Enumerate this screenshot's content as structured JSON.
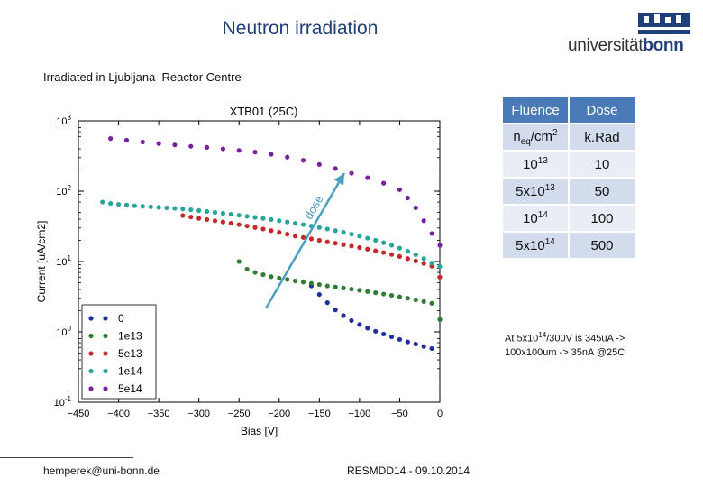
{
  "slide": {
    "title": "Neutron irradiation",
    "subtitle": "Irradiated in Ljubljana  Reactor Centre",
    "logo": {
      "text_a": "universität",
      "text_b": "bonn",
      "brand_color": "#1f3f7a"
    },
    "footer_email": "hemperek@uni-bonn.de",
    "footer_event": "RESMDD14 - 09.10.2014",
    "note": {
      "line1_prefix": "At 5x10",
      "line1_exp": "14",
      "line1_suffix": "/300V is 345uA ->",
      "line2": "100x100um -> 35nA @25C"
    }
  },
  "fluence_table": {
    "header": [
      "Fluence",
      "Dose"
    ],
    "units_fluence": {
      "base": "n",
      "sub": "eq",
      "tail": "/cm",
      "sup": "2"
    },
    "units_dose": "k.Rad",
    "rows": [
      {
        "mant": "",
        "exp": "13",
        "base": "10",
        "dose": "10"
      },
      {
        "mant": "5x",
        "exp": "13",
        "base": "10",
        "dose": "50"
      },
      {
        "mant": "",
        "exp": "14",
        "base": "10",
        "dose": "100"
      },
      {
        "mant": "5x",
        "exp": "14",
        "base": "10",
        "dose": "500"
      }
    ]
  },
  "chart_data": {
    "type": "scatter",
    "title": "XTB01 (25C)",
    "xlabel": "Bias [V]",
    "ylabel": "Current [uA/cm2]",
    "xlim": [
      -450,
      0
    ],
    "ylim_log10": [
      -1,
      3
    ],
    "yscale": "log",
    "x_ticks": [
      "−450",
      "−400",
      "−350",
      "−300",
      "−250",
      "−200",
      "−150",
      "−100",
      "−50",
      "0"
    ],
    "y_ticks": [
      {
        "base": "10",
        "exp": "-1"
      },
      {
        "base": "10",
        "exp": "0"
      },
      {
        "base": "10",
        "exp": "1"
      },
      {
        "base": "10",
        "exp": "2"
      },
      {
        "base": "10",
        "exp": "3"
      }
    ],
    "legend_position": "bottom-left",
    "arrow_label": "dose",
    "series": [
      {
        "name": "0",
        "color": "#1f2fa0",
        "x": [
          -160,
          -150,
          -140,
          -130,
          -120,
          -110,
          -100,
          -90,
          -80,
          -70,
          -60,
          -50,
          -40,
          -30,
          -20,
          -10,
          0
        ],
        "y": [
          4.5,
          3.4,
          2.6,
          2.05,
          1.7,
          1.45,
          1.27,
          1.13,
          1.02,
          0.93,
          0.85,
          0.78,
          0.72,
          0.67,
          0.62,
          0.58,
          1.5
        ]
      },
      {
        "name": "1e13",
        "color": "#2e7d32",
        "x": [
          -250,
          -240,
          -230,
          -220,
          -210,
          -200,
          -190,
          -180,
          -170,
          -160,
          -150,
          -140,
          -130,
          -120,
          -110,
          -100,
          -90,
          -80,
          -70,
          -60,
          -50,
          -40,
          -30,
          -20,
          -10,
          0
        ],
        "y": [
          10,
          7.8,
          7.0,
          6.5,
          6.1,
          5.8,
          5.55,
          5.3,
          5.1,
          4.9,
          4.7,
          4.5,
          4.35,
          4.2,
          4.05,
          3.9,
          3.75,
          3.6,
          3.45,
          3.3,
          3.15,
          3.0,
          2.85,
          2.7,
          2.55,
          1.5
        ]
      },
      {
        "name": "5e13",
        "color": "#c62828",
        "x": [
          -320,
          -310,
          -300,
          -290,
          -280,
          -270,
          -260,
          -250,
          -240,
          -230,
          -220,
          -210,
          -200,
          -190,
          -180,
          -170,
          -160,
          -150,
          -140,
          -130,
          -120,
          -110,
          -100,
          -90,
          -80,
          -70,
          -60,
          -50,
          -40,
          -30,
          -20,
          -10,
          0
        ],
        "y": [
          45,
          43,
          41,
          39.5,
          38,
          36.5,
          35,
          33.5,
          32,
          30.5,
          29,
          27.5,
          26,
          24.5,
          23,
          22,
          21,
          20,
          19,
          18.2,
          17.4,
          16.6,
          15.8,
          15,
          14.2,
          13.4,
          12.6,
          11.8,
          11,
          10.2,
          9.4,
          8.6,
          6.0
        ]
      },
      {
        "name": "1e14",
        "color": "#26a69a",
        "x": [
          -420,
          -410,
          -400,
          -390,
          -380,
          -370,
          -360,
          -350,
          -340,
          -330,
          -320,
          -310,
          -300,
          -290,
          -280,
          -270,
          -260,
          -250,
          -240,
          -230,
          -220,
          -210,
          -200,
          -190,
          -180,
          -170,
          -160,
          -150,
          -140,
          -130,
          -120,
          -110,
          -100,
          -90,
          -80,
          -70,
          -60,
          -50,
          -40,
          -30,
          -20,
          -10,
          0
        ],
        "y": [
          70,
          67,
          65,
          63.5,
          62,
          61,
          60,
          59,
          58,
          57,
          56,
          54.5,
          53,
          51.5,
          50,
          48.5,
          47,
          45.5,
          44,
          42.5,
          41,
          39.5,
          38,
          36.5,
          35,
          33.5,
          32,
          30.5,
          29,
          27.5,
          26,
          24.5,
          23,
          21.5,
          20,
          18.5,
          17,
          15.5,
          14,
          12.5,
          11,
          9.5,
          8.5
        ]
      },
      {
        "name": "5e14",
        "color": "#7b1fa2",
        "x": [
          -410,
          -390,
          -370,
          -350,
          -330,
          -310,
          -290,
          -270,
          -250,
          -230,
          -210,
          -190,
          -170,
          -150,
          -130,
          -110,
          -90,
          -70,
          -50,
          -40,
          -30,
          -20,
          -10,
          0
        ],
        "y": [
          560,
          530,
          500,
          475,
          455,
          435,
          420,
          400,
          380,
          360,
          335,
          305,
          275,
          240,
          210,
          180,
          155,
          130,
          105,
          80,
          58,
          38,
          25,
          17
        ]
      }
    ]
  }
}
